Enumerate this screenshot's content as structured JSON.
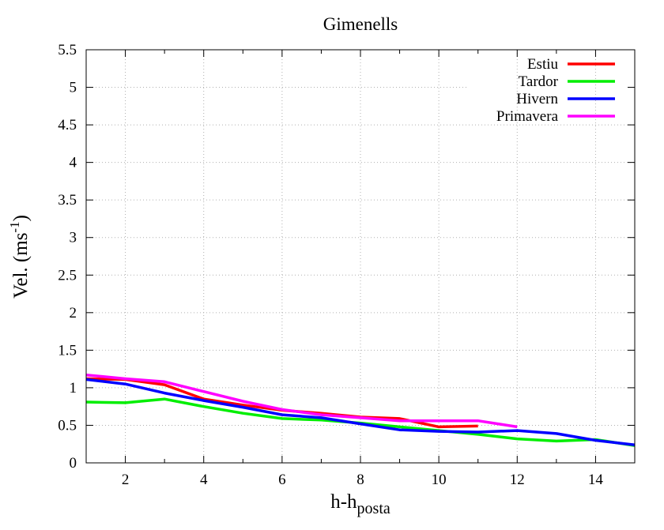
{
  "chart_data": {
    "type": "line",
    "title": "Gimenells",
    "xlabel_main": "h-h",
    "xlabel_sub": "posta",
    "ylabel_main": "Vel. (ms",
    "ylabel_sup": "-1",
    "ylabel_close": ")",
    "xlim": [
      1,
      15
    ],
    "ylim": [
      0,
      5.5
    ],
    "xticks": [
      2,
      4,
      6,
      8,
      10,
      12,
      14
    ],
    "xtick_labels": [
      "2",
      "4",
      "6",
      "8",
      "10",
      "12",
      "14"
    ],
    "yticks": [
      0,
      0.5,
      1,
      1.5,
      2,
      2.5,
      3,
      3.5,
      4,
      4.5,
      5,
      5.5
    ],
    "ytick_labels": [
      "0",
      "0.5",
      "1",
      "1.5",
      "2",
      "2.5",
      "3",
      "3.5",
      "4",
      "4.5",
      "5",
      "5.5"
    ],
    "grid": true,
    "legend_position": "top-right",
    "series": [
      {
        "name": "Estiu",
        "color": "#ff0000",
        "x": [
          1,
          2,
          3,
          4,
          5,
          6,
          7,
          8,
          9,
          10,
          11
        ],
        "y": [
          1.12,
          1.11,
          1.04,
          0.85,
          0.77,
          0.7,
          0.66,
          0.61,
          0.59,
          0.48,
          0.49
        ]
      },
      {
        "name": "Tardor",
        "color": "#00ee00",
        "x": [
          1,
          2,
          3,
          4,
          5,
          6,
          7,
          8,
          9,
          10,
          11,
          12,
          13,
          14,
          15
        ],
        "y": [
          0.81,
          0.8,
          0.85,
          0.75,
          0.66,
          0.59,
          0.57,
          0.53,
          0.48,
          0.43,
          0.38,
          0.32,
          0.29,
          0.31,
          0.23
        ]
      },
      {
        "name": "Hivern",
        "color": "#0000ff",
        "x": [
          1,
          2,
          3,
          4,
          5,
          6,
          7,
          8,
          9,
          10,
          11,
          12,
          13,
          14,
          15
        ],
        "y": [
          1.11,
          1.05,
          0.93,
          0.83,
          0.74,
          0.64,
          0.6,
          0.52,
          0.44,
          0.42,
          0.41,
          0.43,
          0.39,
          0.3,
          0.24
        ]
      },
      {
        "name": "Primavera",
        "color": "#ff00ff",
        "x": [
          1,
          2,
          3,
          4,
          5,
          6,
          7,
          8,
          9,
          10,
          11,
          12
        ],
        "y": [
          1.17,
          1.12,
          1.08,
          0.95,
          0.82,
          0.71,
          0.64,
          0.6,
          0.56,
          0.56,
          0.56,
          0.48
        ]
      }
    ]
  }
}
